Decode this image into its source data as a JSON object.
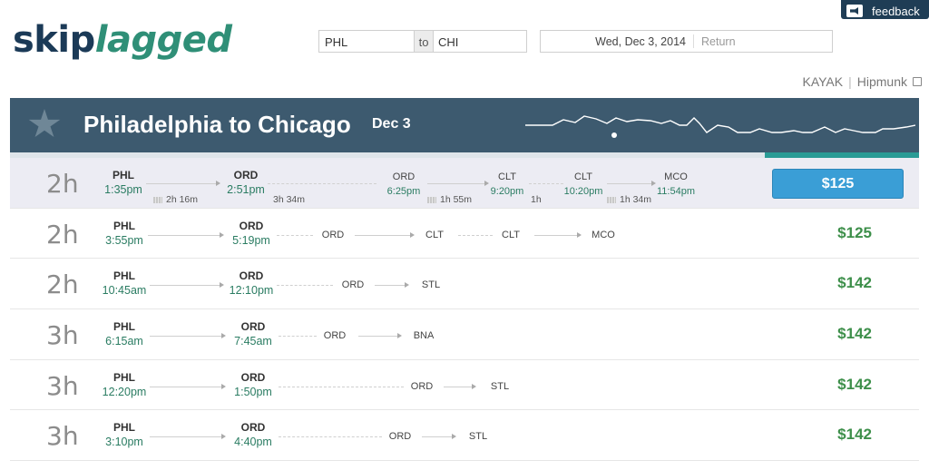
{
  "logo": {
    "part1": "skip",
    "part2": "lagged"
  },
  "search": {
    "from": "PHL",
    "to_label": "to",
    "to": "CHI"
  },
  "dates": {
    "depart": "Wed, Dec 3, 2014",
    "return_placeholder": "Return"
  },
  "feedback": {
    "label": "feedback",
    "icon": "megaphone-icon"
  },
  "partners": {
    "kayak": "KAYAK",
    "divider": "|",
    "hipmunk": "Hipmunk"
  },
  "banner": {
    "title": "Philadelphia to Chicago",
    "date": "Dec 3",
    "icon": "star-icon"
  },
  "colors": {
    "banner": "#3d5a6f",
    "price": "#3d8f4a",
    "time": "#2a7c62",
    "button": "#3a9ed6",
    "accent_bar": "#2a9b95"
  },
  "rows": [
    {
      "duration": "2h",
      "price": "$125",
      "selected": true,
      "dep": {
        "code": "PHL",
        "time": "1:35pm"
      },
      "arr": {
        "code": "ORD",
        "time": "2:51pm"
      },
      "legs": [
        "2h 16m",
        "3h 34m"
      ],
      "extra": [
        {
          "code": "ORD",
          "time": "6:25pm"
        },
        {
          "code": "CLT",
          "time": "9:20pm"
        },
        {
          "code": "CLT",
          "time": "10:20pm"
        },
        {
          "code": "MCO",
          "time": "11:54pm"
        }
      ],
      "extra_legs": [
        "1h 55m",
        "1h",
        "1h 34m"
      ]
    },
    {
      "duration": "2h",
      "price": "$125",
      "dep": {
        "code": "PHL",
        "time": "3:55pm"
      },
      "arr": {
        "code": "ORD",
        "time": "5:19pm"
      },
      "route": [
        "ORD",
        "CLT",
        "CLT",
        "MCO"
      ]
    },
    {
      "duration": "2h",
      "price": "$142",
      "dep": {
        "code": "PHL",
        "time": "10:45am"
      },
      "arr": {
        "code": "ORD",
        "time": "12:10pm"
      },
      "route": [
        "ORD",
        "STL"
      ]
    },
    {
      "duration": "3h",
      "price": "$142",
      "dep": {
        "code": "PHL",
        "time": "6:15am"
      },
      "arr": {
        "code": "ORD",
        "time": "7:45am"
      },
      "route": [
        "ORD",
        "BNA"
      ]
    },
    {
      "duration": "3h",
      "price": "$142",
      "dep": {
        "code": "PHL",
        "time": "12:20pm"
      },
      "arr": {
        "code": "ORD",
        "time": "1:50pm"
      },
      "route": [
        "ORD",
        "STL"
      ]
    },
    {
      "duration": "3h",
      "price": "$142",
      "dep": {
        "code": "PHL",
        "time": "3:10pm"
      },
      "arr": {
        "code": "ORD",
        "time": "4:40pm"
      },
      "route": [
        "ORD",
        "STL"
      ]
    }
  ]
}
